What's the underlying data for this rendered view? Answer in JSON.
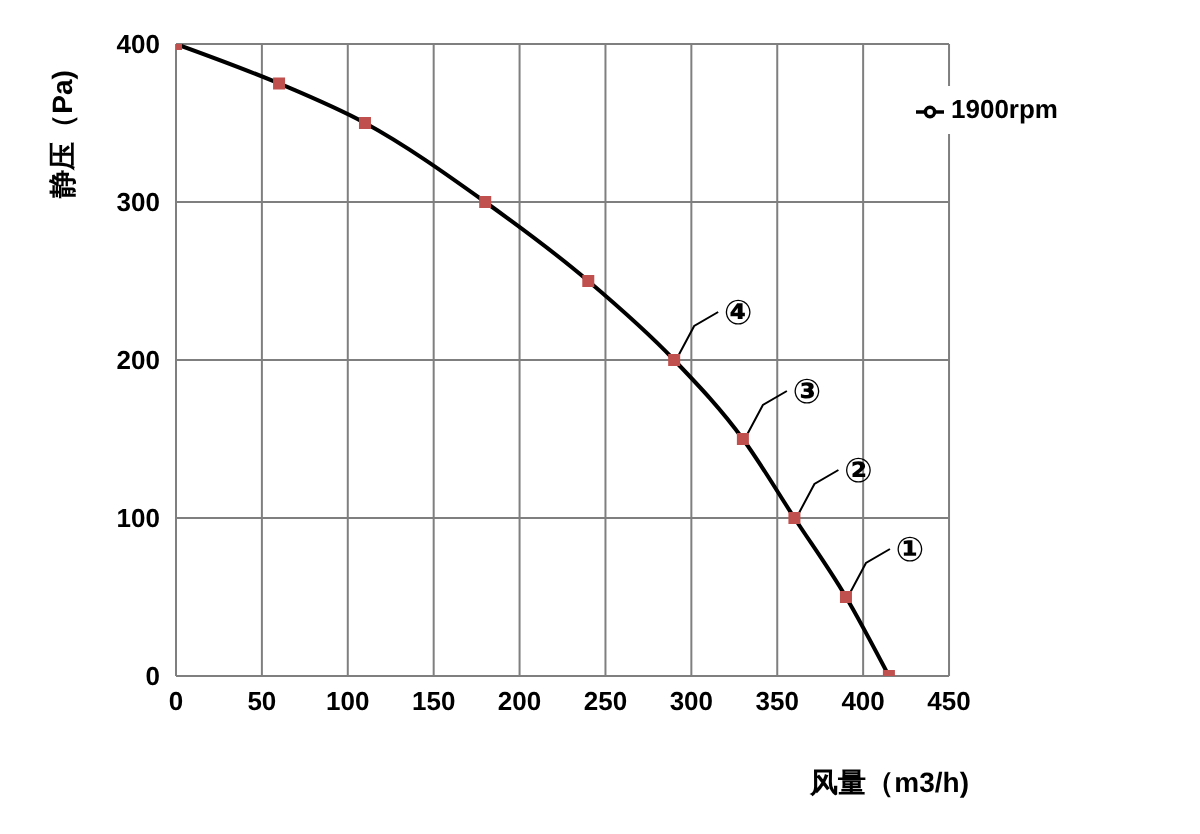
{
  "chart_data": {
    "type": "line",
    "xlabel": "风量（m3/h)",
    "ylabel": "静压（Pa)",
    "x": [
      0,
      60,
      110,
      180,
      240,
      290,
      330,
      360,
      390,
      415
    ],
    "series": [
      {
        "name": "1900rpm",
        "color": "#000000",
        "colors": [
          "#c0504d",
          "#c0504d",
          "#c0504d",
          "#c0504d",
          "#c0504d",
          "#c0504d",
          "#c0504d",
          "#c0504d",
          "#c0504d",
          "#c0504d"
        ],
        "values": [
          400,
          375,
          350,
          300,
          250,
          200,
          150,
          100,
          50,
          0
        ]
      }
    ],
    "xlim": [
      0,
      450
    ],
    "xticks": [
      0,
      50,
      100,
      150,
      200,
      250,
      300,
      350,
      400,
      450
    ],
    "ylim": [
      0,
      400
    ],
    "yticks": [
      0,
      100,
      200,
      300,
      400
    ],
    "grid": true,
    "legend": "top right",
    "marker": "square",
    "line_style": "solid",
    "annotations": [
      {
        "text": "①",
        "x": 390,
        "y": 50
      },
      {
        "text": "②",
        "x": 360,
        "y": 100
      },
      {
        "text": "③",
        "x": 330,
        "y": 150
      },
      {
        "text": "④",
        "x": 290,
        "y": 200
      }
    ]
  }
}
